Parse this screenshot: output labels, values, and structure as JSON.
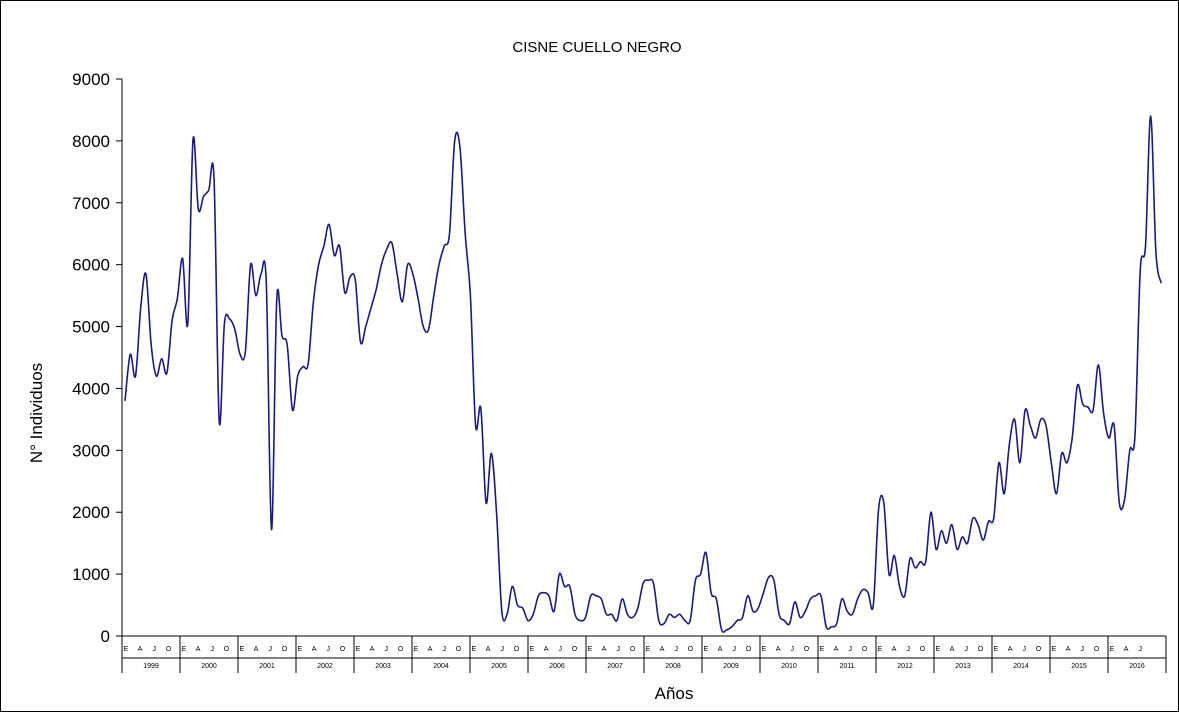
{
  "chart_data": {
    "type": "line",
    "title": "CISNE CUELLO NEGRO",
    "xlabel": "Años",
    "ylabel": "N° Individuos",
    "ylim": [
      0,
      9000
    ],
    "yticks": [
      0,
      1000,
      2000,
      3000,
      4000,
      5000,
      6000,
      7000,
      8000,
      9000
    ],
    "years": [
      "1999",
      "2000",
      "2001",
      "2002",
      "2003",
      "2004",
      "2005",
      "2006",
      "2007",
      "2008",
      "2009",
      "2010",
      "2011",
      "2012",
      "2013",
      "2014",
      "2015",
      "2016"
    ],
    "month_ticks": [
      "E",
      "A",
      "J",
      "O"
    ],
    "grid": false,
    "legend": "none",
    "line_color": "#1a1a80",
    "series": [
      {
        "values": [
          3800,
          4550,
          4200,
          5300,
          5850,
          4700,
          4200,
          4480,
          4250,
          5100,
          5450,
          6100,
          5050,
          8020,
          6900,
          7100,
          7200,
          7400,
          3470,
          5050,
          5120,
          4950,
          4550,
          4600,
          6000,
          5500,
          5850,
          5700,
          1720,
          5450,
          4850,
          4700,
          3650,
          4200,
          4350,
          4400,
          5400,
          6000,
          6300,
          6650,
          6150,
          6300,
          5550,
          5800,
          5750,
          4750,
          5000,
          5300,
          5600,
          6000,
          6250,
          6350,
          5850,
          5400,
          6000,
          5850,
          5450,
          5000,
          4950,
          5500,
          6000,
          6300,
          6500,
          8000,
          7900,
          6500,
          5500,
          3400,
          3680,
          2150,
          2950,
          2000,
          400,
          350,
          800,
          500,
          450,
          250,
          350,
          650,
          700,
          650,
          400,
          1000,
          800,
          800,
          350,
          250,
          300,
          650,
          650,
          600,
          350,
          350,
          250,
          600,
          350,
          300,
          450,
          850,
          900,
          850,
          250,
          200,
          350,
          300,
          350,
          250,
          250,
          900,
          1000,
          1350,
          700,
          600,
          100,
          100,
          150,
          250,
          300,
          650,
          400,
          450,
          700,
          950,
          900,
          350,
          250,
          200,
          550,
          300,
          400,
          600,
          650,
          650,
          150,
          150,
          200,
          600,
          400,
          350,
          600,
          750,
          700,
          500,
          2050,
          2150,
          1000,
          1300,
          800,
          650,
          1250,
          1100,
          1200,
          1200,
          2000,
          1400,
          1700,
          1500,
          1800,
          1400,
          1600,
          1500,
          1900,
          1800,
          1550,
          1850,
          1900,
          2800,
          2300,
          3100,
          3500,
          2800,
          3650,
          3400,
          3200,
          3500,
          3400,
          2800,
          2300,
          2950,
          2800,
          3200,
          4050,
          3750,
          3700,
          3650,
          4380,
          3600,
          3200,
          3400,
          2150,
          2200,
          3000,
          3250,
          5900,
          6300,
          8400,
          6200,
          5700
        ]
      }
    ]
  }
}
